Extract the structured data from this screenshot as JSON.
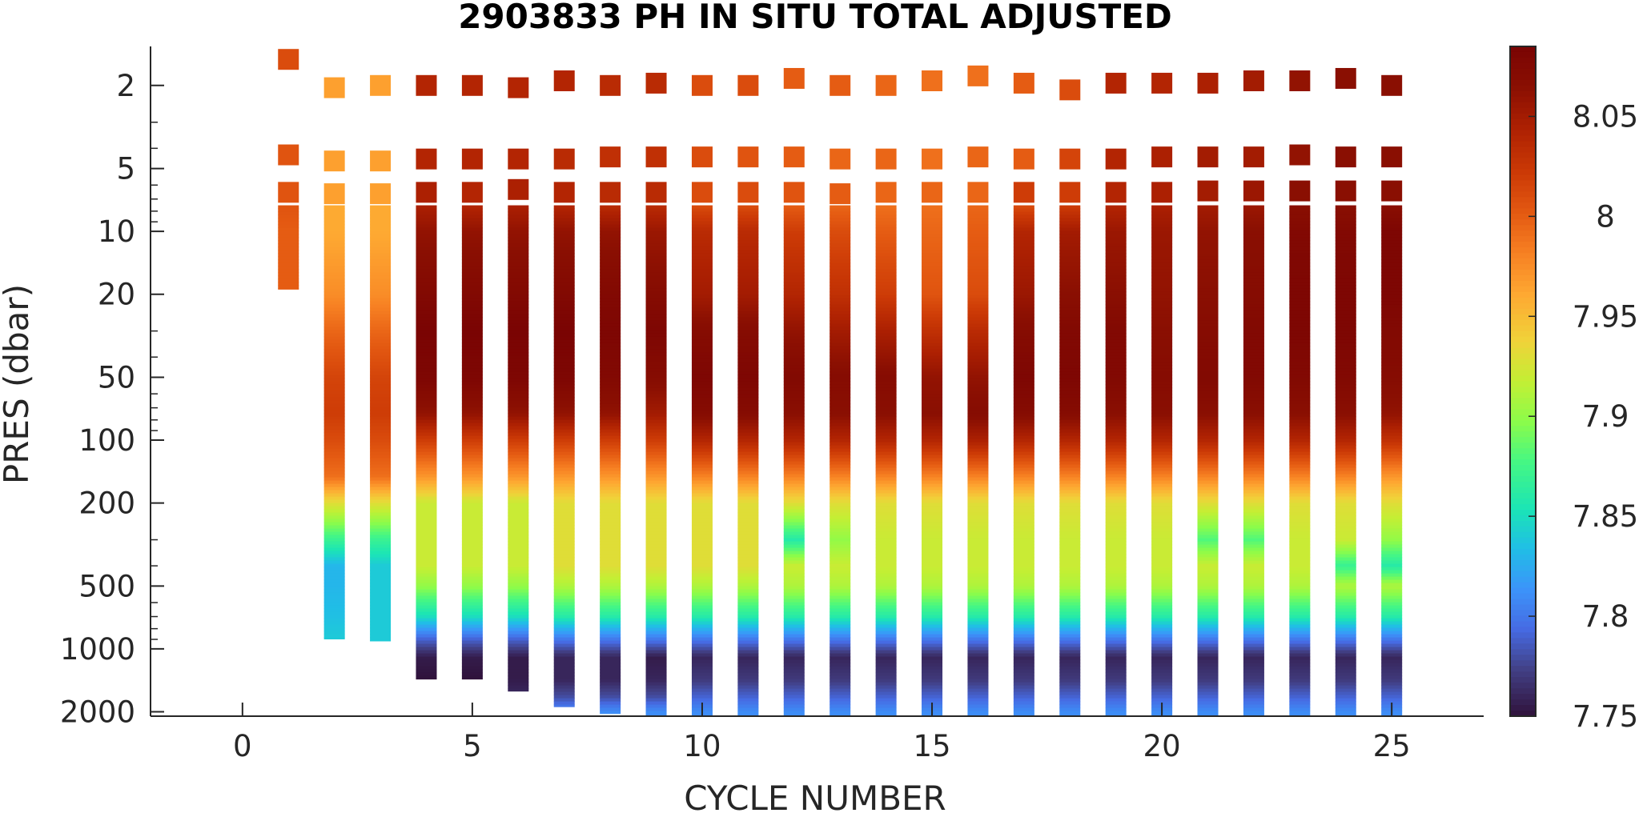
{
  "chart_data": {
    "type": "heatmap",
    "title": "2903833  PH IN SITU TOTAL ADJUSTED",
    "xlabel": "CYCLE NUMBER",
    "ylabel": "PRES (dbar)",
    "xlim": [
      -2,
      27
    ],
    "x_ticks": [
      "0",
      "5",
      "10",
      "15",
      "20",
      "25"
    ],
    "x_tick_values": [
      0,
      5,
      10,
      15,
      20,
      25
    ],
    "ylim": [
      2100,
      1.3
    ],
    "y_scale": "log",
    "y_reversed": true,
    "y_ticks": [
      "2",
      "5",
      "10",
      "20",
      "50",
      "100",
      "200",
      "500",
      "1000",
      "2000"
    ],
    "y_tick_values": [
      2,
      5,
      10,
      20,
      50,
      100,
      200,
      500,
      1000,
      2000
    ],
    "colorbar": {
      "colormap": "turbo",
      "clim": [
        7.75,
        8.085
      ],
      "ticks": [
        "7.75",
        "7.8",
        "7.85",
        "7.9",
        "7.95",
        "8",
        "8.05"
      ],
      "tick_values": [
        7.75,
        7.8,
        7.85,
        7.9,
        7.95,
        8.0,
        8.05
      ]
    },
    "profile_pressure_levels": [
      2,
      5,
      7,
      10,
      20,
      30,
      50,
      75,
      100,
      150,
      200,
      300,
      400,
      500,
      700,
      900,
      1100,
      1400,
      1700,
      2000
    ],
    "series": [
      {
        "cycle": 1,
        "surface_pres": [
          1.5,
          4.3,
          6.5
        ],
        "surface_ph": [
          8.01,
          8.005,
          8.005
        ],
        "max_pres": 19,
        "ph": [
          8.005,
          8.005,
          8.0,
          8.0,
          8.0
        ]
      },
      {
        "cycle": 2,
        "surface_pres": [
          2.05,
          4.6,
          6.6
        ],
        "surface_ph": [
          7.965,
          7.965,
          7.965
        ],
        "max_pres": 900,
        "ph": [
          7.96,
          7.96,
          7.96,
          7.96,
          7.975,
          7.995,
          8.015,
          8.02,
          8.01,
          7.99,
          7.93,
          7.87,
          7.83,
          7.83,
          7.835,
          7.84
        ]
      },
      {
        "cycle": 3,
        "surface_pres": [
          2.0,
          4.6,
          6.6
        ],
        "surface_ph": [
          7.965,
          7.965,
          7.965
        ],
        "max_pres": 920,
        "ph": [
          7.96,
          7.96,
          7.96,
          7.96,
          7.975,
          7.995,
          8.015,
          8.02,
          8.01,
          7.99,
          7.93,
          7.87,
          7.84,
          7.84,
          7.84,
          7.84
        ]
      },
      {
        "cycle": 4,
        "surface_pres": [
          2.0,
          4.5,
          6.5
        ],
        "surface_ph": [
          8.04,
          8.04,
          8.045
        ],
        "max_pres": 1400,
        "ph": [
          8.045,
          8.05,
          8.05,
          8.06,
          8.075,
          8.085,
          8.08,
          8.06,
          8.02,
          7.97,
          7.92,
          7.92,
          7.92,
          7.9,
          7.85,
          7.79,
          7.755,
          7.75
        ]
      },
      {
        "cycle": 5,
        "surface_pres": [
          2.0,
          4.5,
          6.5
        ],
        "surface_ph": [
          8.04,
          8.04,
          8.04
        ],
        "max_pres": 1400,
        "ph": [
          8.04,
          8.045,
          8.05,
          8.06,
          8.075,
          8.085,
          8.08,
          8.06,
          8.02,
          7.97,
          7.92,
          7.92,
          7.92,
          7.9,
          7.85,
          7.79,
          7.755,
          7.75
        ]
      },
      {
        "cycle": 6,
        "surface_pres": [
          2.05,
          4.5,
          6.3
        ],
        "surface_ph": [
          8.04,
          8.04,
          8.045
        ],
        "max_pres": 1600,
        "ph": [
          8.045,
          8.05,
          8.05,
          8.06,
          8.075,
          8.085,
          8.08,
          8.06,
          8.02,
          7.97,
          7.92,
          7.92,
          7.92,
          7.9,
          7.85,
          7.79,
          7.755,
          7.755,
          7.76
        ]
      },
      {
        "cycle": 7,
        "surface_pres": [
          1.9,
          4.5,
          6.5
        ],
        "surface_ph": [
          8.04,
          8.035,
          8.04
        ],
        "max_pres": 1900,
        "ph": [
          8.04,
          8.045,
          8.05,
          8.06,
          8.075,
          8.085,
          8.08,
          8.06,
          8.02,
          7.97,
          7.93,
          7.93,
          7.93,
          7.91,
          7.86,
          7.8,
          7.76,
          7.76,
          7.78,
          7.8
        ]
      },
      {
        "cycle": 8,
        "surface_pres": [
          2.0,
          4.4,
          6.5
        ],
        "surface_ph": [
          8.035,
          8.03,
          8.035
        ],
        "max_pres": 2050,
        "ph": [
          8.035,
          8.04,
          8.05,
          8.06,
          8.075,
          8.08,
          8.075,
          8.06,
          8.02,
          7.97,
          7.93,
          7.93,
          7.93,
          7.91,
          7.86,
          7.8,
          7.76,
          7.76,
          7.78,
          7.81
        ]
      },
      {
        "cycle": 9,
        "surface_pres": [
          1.95,
          4.4,
          6.5
        ],
        "surface_ph": [
          8.035,
          8.03,
          8.035
        ],
        "max_pres": 2100,
        "ph": [
          8.035,
          8.04,
          8.045,
          8.055,
          8.07,
          8.08,
          8.07,
          8.05,
          8.02,
          7.97,
          7.93,
          7.93,
          7.93,
          7.91,
          7.86,
          7.8,
          7.755,
          7.76,
          7.78,
          7.81
        ]
      },
      {
        "cycle": 10,
        "surface_pres": [
          2.0,
          4.4,
          6.5
        ],
        "surface_ph": [
          8.01,
          8.01,
          8.01
        ],
        "max_pres": 2100,
        "ph": [
          8.01,
          8.01,
          8.02,
          8.035,
          8.05,
          8.07,
          8.08,
          8.07,
          8.04,
          7.98,
          7.93,
          7.93,
          7.93,
          7.91,
          7.86,
          7.8,
          7.76,
          7.77,
          7.79,
          7.81
        ]
      },
      {
        "cycle": 11,
        "surface_pres": [
          2.0,
          4.4,
          6.5
        ],
        "surface_ph": [
          8.01,
          8.005,
          8.01
        ],
        "max_pres": 2100,
        "ph": [
          8.01,
          8.01,
          8.02,
          8.035,
          8.05,
          8.07,
          8.08,
          8.07,
          8.04,
          7.98,
          7.93,
          7.93,
          7.93,
          7.91,
          7.86,
          7.8,
          7.76,
          7.77,
          7.79,
          7.81
        ]
      },
      {
        "cycle": 12,
        "surface_pres": [
          1.85,
          4.4,
          6.5
        ],
        "surface_ph": [
          8.0,
          8.0,
          8.005
        ],
        "max_pres": 2100,
        "ph": [
          8.0,
          8.005,
          8.01,
          8.02,
          8.04,
          8.06,
          8.075,
          8.065,
          8.04,
          7.98,
          7.93,
          7.86,
          7.92,
          7.91,
          7.86,
          7.8,
          7.76,
          7.77,
          7.79,
          7.81
        ]
      },
      {
        "cycle": 13,
        "surface_pres": [
          2.0,
          4.5,
          6.6
        ],
        "surface_ph": [
          8.0,
          7.995,
          8.0
        ],
        "max_pres": 2100,
        "ph": [
          7.995,
          7.995,
          8.0,
          8.01,
          8.03,
          8.05,
          8.07,
          8.065,
          8.04,
          7.98,
          7.93,
          7.9,
          7.92,
          7.91,
          7.86,
          7.8,
          7.76,
          7.77,
          7.79,
          7.81
        ]
      },
      {
        "cycle": 14,
        "surface_pres": [
          2.0,
          4.5,
          6.5
        ],
        "surface_ph": [
          7.995,
          7.995,
          7.995
        ],
        "max_pres": 2100,
        "ph": [
          7.99,
          7.99,
          7.99,
          8.0,
          8.02,
          8.045,
          8.07,
          8.065,
          8.04,
          7.98,
          7.93,
          7.92,
          7.92,
          7.91,
          7.86,
          7.8,
          7.76,
          7.77,
          7.79,
          7.81
        ]
      },
      {
        "cycle": 15,
        "surface_pres": [
          1.9,
          4.5,
          6.5
        ],
        "surface_ph": [
          7.99,
          7.99,
          7.995
        ],
        "max_pres": 2100,
        "ph": [
          7.99,
          7.99,
          7.99,
          7.995,
          8.005,
          8.03,
          8.06,
          8.065,
          8.04,
          7.98,
          7.93,
          7.92,
          7.92,
          7.91,
          7.86,
          7.8,
          7.76,
          7.77,
          7.79,
          7.81
        ]
      },
      {
        "cycle": 16,
        "surface_pres": [
          1.8,
          4.4,
          6.5
        ],
        "surface_ph": [
          7.99,
          7.995,
          7.995
        ],
        "max_pres": 2100,
        "ph": [
          7.995,
          7.995,
          7.995,
          8.0,
          8.01,
          8.035,
          8.06,
          8.07,
          8.045,
          7.98,
          7.93,
          7.92,
          7.92,
          7.91,
          7.86,
          7.8,
          7.76,
          7.77,
          7.79,
          7.81
        ]
      },
      {
        "cycle": 17,
        "surface_pres": [
          1.95,
          4.5,
          6.5
        ],
        "surface_ph": [
          8.0,
          8.0,
          8.02
        ],
        "max_pres": 2100,
        "ph": [
          8.01,
          8.015,
          8.025,
          8.04,
          8.055,
          8.07,
          8.08,
          8.07,
          8.04,
          7.98,
          7.93,
          7.92,
          7.92,
          7.91,
          7.86,
          7.8,
          7.76,
          7.77,
          7.79,
          7.81
        ]
      },
      {
        "cycle": 18,
        "surface_pres": [
          2.1,
          4.5,
          6.5
        ],
        "surface_ph": [
          8.01,
          8.015,
          8.02
        ],
        "max_pres": 2100,
        "ph": [
          8.02,
          8.025,
          8.035,
          8.05,
          8.065,
          8.075,
          8.08,
          8.07,
          8.04,
          7.98,
          7.93,
          7.92,
          7.92,
          7.91,
          7.86,
          7.8,
          7.76,
          7.77,
          7.79,
          7.81
        ]
      },
      {
        "cycle": 19,
        "surface_pres": [
          1.95,
          4.5,
          6.5
        ],
        "surface_ph": [
          8.04,
          8.04,
          8.04
        ],
        "max_pres": 2100,
        "ph": [
          8.04,
          8.04,
          8.045,
          8.055,
          8.065,
          8.075,
          8.075,
          8.065,
          8.04,
          7.98,
          7.93,
          7.92,
          7.92,
          7.91,
          7.86,
          7.8,
          7.76,
          7.77,
          7.79,
          7.81
        ]
      },
      {
        "cycle": 20,
        "surface_pres": [
          1.95,
          4.4,
          6.5
        ],
        "surface_ph": [
          8.04,
          8.045,
          8.045
        ],
        "max_pres": 2100,
        "ph": [
          8.045,
          8.05,
          8.05,
          8.055,
          8.06,
          8.065,
          8.07,
          8.065,
          8.04,
          7.98,
          7.93,
          7.92,
          7.92,
          7.91,
          7.86,
          7.8,
          7.76,
          7.77,
          7.79,
          7.81
        ]
      },
      {
        "cycle": 21,
        "surface_pres": [
          1.95,
          4.4,
          6.4
        ],
        "surface_ph": [
          8.045,
          8.05,
          8.05
        ],
        "max_pres": 2100,
        "ph": [
          8.05,
          8.05,
          8.055,
          8.06,
          8.065,
          8.07,
          8.075,
          8.065,
          8.04,
          7.98,
          7.93,
          7.88,
          7.92,
          7.91,
          7.86,
          7.8,
          7.76,
          7.77,
          7.79,
          7.81
        ]
      },
      {
        "cycle": 22,
        "surface_pres": [
          1.9,
          4.4,
          6.4
        ],
        "surface_ph": [
          8.05,
          8.05,
          8.055
        ],
        "max_pres": 2100,
        "ph": [
          8.055,
          8.055,
          8.06,
          8.065,
          8.07,
          8.075,
          8.075,
          8.065,
          8.04,
          7.98,
          7.93,
          7.88,
          7.92,
          7.91,
          7.86,
          7.8,
          7.76,
          7.77,
          7.79,
          7.81
        ]
      },
      {
        "cycle": 23,
        "surface_pres": [
          1.9,
          4.3,
          6.4
        ],
        "surface_ph": [
          8.06,
          8.06,
          8.065
        ],
        "max_pres": 2100,
        "ph": [
          8.065,
          8.065,
          8.07,
          8.075,
          8.08,
          8.08,
          8.075,
          8.065,
          8.04,
          7.98,
          7.93,
          7.92,
          7.92,
          7.91,
          7.86,
          7.8,
          7.76,
          7.77,
          7.79,
          7.81
        ]
      },
      {
        "cycle": 24,
        "surface_pres": [
          1.85,
          4.4,
          6.4
        ],
        "surface_ph": [
          8.065,
          8.065,
          8.065
        ],
        "max_pres": 2100,
        "ph": [
          8.065,
          8.07,
          8.07,
          8.075,
          8.08,
          8.08,
          8.075,
          8.065,
          8.04,
          7.98,
          7.93,
          7.92,
          7.87,
          7.91,
          7.86,
          7.8,
          7.76,
          7.77,
          7.79,
          7.81
        ]
      },
      {
        "cycle": 25,
        "surface_pres": [
          2.0,
          4.4,
          6.4
        ],
        "surface_ph": [
          8.065,
          8.065,
          8.065
        ],
        "max_pres": 2100,
        "ph": [
          8.065,
          8.07,
          8.075,
          8.08,
          8.08,
          8.075,
          8.07,
          8.06,
          8.03,
          7.97,
          7.93,
          7.9,
          7.86,
          7.91,
          7.86,
          7.8,
          7.76,
          7.77,
          7.79,
          7.81
        ]
      }
    ]
  }
}
